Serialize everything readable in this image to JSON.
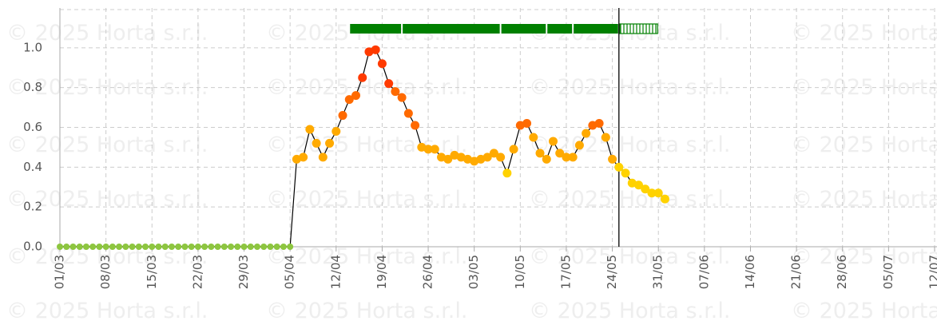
{
  "chart_data": {
    "type": "line",
    "watermark": "© 2025 Horta s.r.l.",
    "x": [
      "01/03",
      "02/03",
      "03/03",
      "04/03",
      "05/03",
      "06/03",
      "07/03",
      "08/03",
      "09/03",
      "10/03",
      "11/03",
      "12/03",
      "13/03",
      "14/03",
      "15/03",
      "16/03",
      "17/03",
      "18/03",
      "19/03",
      "20/03",
      "21/03",
      "22/03",
      "23/03",
      "24/03",
      "25/03",
      "26/03",
      "27/03",
      "28/03",
      "29/03",
      "30/03",
      "31/03",
      "01/04",
      "02/04",
      "03/04",
      "04/04",
      "05/04",
      "06/04",
      "07/04",
      "08/04",
      "09/04",
      "10/04",
      "11/04",
      "12/04",
      "13/04",
      "14/04",
      "15/04",
      "16/04",
      "17/04",
      "18/04",
      "19/04",
      "20/04",
      "21/04",
      "22/04",
      "23/04",
      "24/04",
      "25/04",
      "26/04",
      "27/04",
      "28/04",
      "29/04",
      "30/04",
      "01/05",
      "02/05",
      "03/05",
      "04/05",
      "05/05",
      "06/05",
      "07/05",
      "08/05",
      "09/05",
      "10/05",
      "11/05",
      "12/05",
      "13/05",
      "14/05",
      "15/05",
      "16/05",
      "17/05",
      "18/05",
      "19/05",
      "20/05",
      "21/05",
      "22/05",
      "23/05",
      "24/05",
      "25/05",
      "26/05",
      "27/05",
      "28/05",
      "29/05",
      "30/05",
      "31/05",
      "01/06"
    ],
    "values": [
      0,
      0,
      0,
      0,
      0,
      0,
      0,
      0,
      0,
      0,
      0,
      0,
      0,
      0,
      0,
      0,
      0,
      0,
      0,
      0,
      0,
      0,
      0,
      0,
      0,
      0,
      0,
      0,
      0,
      0,
      0,
      0,
      0,
      0,
      0,
      0,
      0.44,
      0.45,
      0.59,
      0.52,
      0.45,
      0.52,
      0.58,
      0.66,
      0.74,
      0.76,
      0.85,
      0.98,
      0.99,
      0.92,
      0.82,
      0.78,
      0.75,
      0.67,
      0.61,
      0.5,
      0.49,
      0.49,
      0.45,
      0.44,
      0.46,
      0.45,
      0.44,
      0.43,
      0.44,
      0.45,
      0.47,
      0.45,
      0.37,
      0.49,
      0.61,
      0.62,
      0.55,
      0.47,
      0.44,
      0.53,
      0.47,
      0.45,
      0.45,
      0.51,
      0.57,
      0.61,
      0.62,
      0.55,
      0.44,
      0.4,
      0.37,
      0.32,
      0.31,
      0.29,
      0.27,
      0.27,
      0.24
    ],
    "colors": [
      "#8dc63f",
      "#8dc63f",
      "#8dc63f",
      "#8dc63f",
      "#8dc63f",
      "#8dc63f",
      "#8dc63f",
      "#8dc63f",
      "#8dc63f",
      "#8dc63f",
      "#8dc63f",
      "#8dc63f",
      "#8dc63f",
      "#8dc63f",
      "#8dc63f",
      "#8dc63f",
      "#8dc63f",
      "#8dc63f",
      "#8dc63f",
      "#8dc63f",
      "#8dc63f",
      "#8dc63f",
      "#8dc63f",
      "#8dc63f",
      "#8dc63f",
      "#8dc63f",
      "#8dc63f",
      "#8dc63f",
      "#8dc63f",
      "#8dc63f",
      "#8dc63f",
      "#8dc63f",
      "#8dc63f",
      "#8dc63f",
      "#8dc63f",
      "#8dc63f",
      "#ffaa00",
      "#ffaa00",
      "#ffaa00",
      "#ffaa00",
      "#ffaa00",
      "#ffaa00",
      "#ffaa00",
      "#ff6a00",
      "#ff6a00",
      "#ff6a00",
      "#ff3a00",
      "#ff3a00",
      "#ff3a00",
      "#ff3a00",
      "#ff3a00",
      "#ff6a00",
      "#ff6a00",
      "#ff6a00",
      "#ff6a00",
      "#ffaa00",
      "#ffaa00",
      "#ffaa00",
      "#ffaa00",
      "#ffaa00",
      "#ffaa00",
      "#ffaa00",
      "#ffaa00",
      "#ffaa00",
      "#ffaa00",
      "#ffaa00",
      "#ffaa00",
      "#ffaa00",
      "#ffd200",
      "#ffaa00",
      "#ff6a00",
      "#ff6a00",
      "#ffaa00",
      "#ffaa00",
      "#ffaa00",
      "#ffaa00",
      "#ffaa00",
      "#ffaa00",
      "#ffaa00",
      "#ffaa00",
      "#ffaa00",
      "#ff6a00",
      "#ff6a00",
      "#ffaa00",
      "#ffaa00",
      "#ffd200",
      "#ffd200",
      "#ffd200",
      "#ffd200",
      "#ffd200",
      "#ffd200",
      "#ffd200",
      "#ffd200"
    ],
    "line_color": "#000000",
    "xlim": [
      "01/03",
      "12/07"
    ],
    "xticks": [
      "01/03",
      "08/03",
      "15/03",
      "22/03",
      "29/03",
      "05/04",
      "12/04",
      "19/04",
      "26/04",
      "03/05",
      "10/05",
      "17/05",
      "24/05",
      "31/05",
      "07/06",
      "14/06",
      "21/06",
      "28/06",
      "05/07",
      "12/07"
    ],
    "ylim": [
      0,
      1.2
    ],
    "yticks": [
      {
        "value": 0,
        "label": "0.0"
      },
      {
        "value": 0.2,
        "label": "0.2"
      },
      {
        "value": 0.4,
        "label": "0.4"
      },
      {
        "value": 0.6,
        "label": "0.6"
      },
      {
        "value": 0.8,
        "label": "0.8"
      },
      {
        "value": 1,
        "label": "1.0"
      }
    ],
    "grid": true,
    "today": "25/05",
    "periods": [
      {
        "start": "14/04",
        "end": "22/04",
        "forecast": false
      },
      {
        "start": "22/04",
        "end": "07/05",
        "forecast": false
      },
      {
        "start": "07/05",
        "end": "14/05",
        "forecast": false
      },
      {
        "start": "14/05",
        "end": "18/05",
        "forecast": false
      },
      {
        "start": "18/05",
        "end": "25/05",
        "forecast": false
      },
      {
        "start": "25/05",
        "end": "31/05",
        "forecast": true
      }
    ],
    "period_color": "#008000"
  }
}
